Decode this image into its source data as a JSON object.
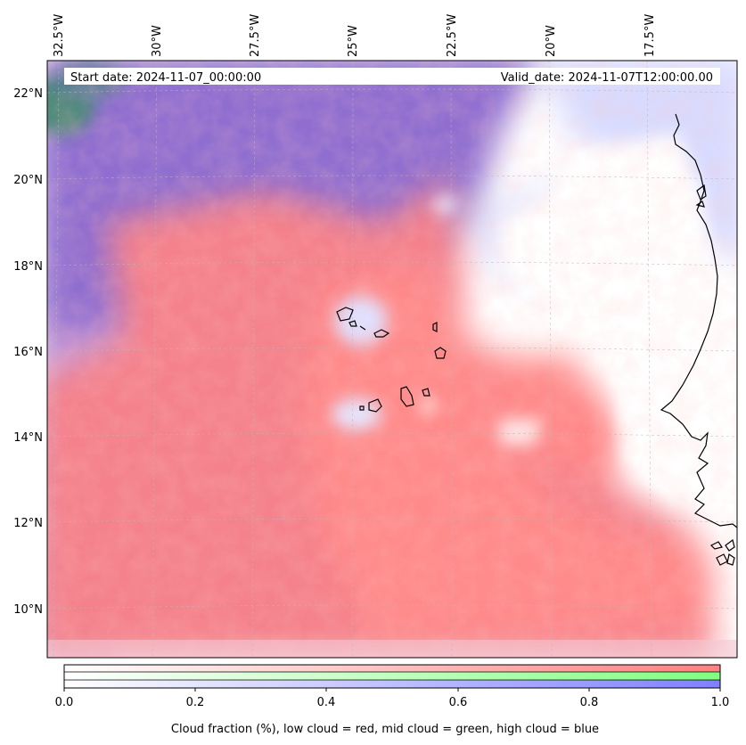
{
  "map": {
    "lon_labels": [
      "32.5°W",
      "30°W",
      "27.5°W",
      "25°W",
      "22.5°W",
      "20°W",
      "17.5°W"
    ],
    "lat_labels": [
      "22°N",
      "20°N",
      "18°N",
      "16°N",
      "14°N",
      "12°N",
      "10°N"
    ],
    "start_date": "Start date: 2024-11-07_00:00:00",
    "valid_date": "Valid_date: 2024-11-07T12:00:00.00",
    "grid": true,
    "coastlines": true
  },
  "colorbar": {
    "tick_labels": [
      "0.0",
      "0.2",
      "0.4",
      "0.6",
      "0.8",
      "1.0"
    ],
    "caption": "Cloud fraction (%), low cloud = red, mid cloud = green, high cloud = blue",
    "low_color": "#ff8080",
    "mid_color": "#80ff80",
    "high_color": "#8080ff"
  }
}
